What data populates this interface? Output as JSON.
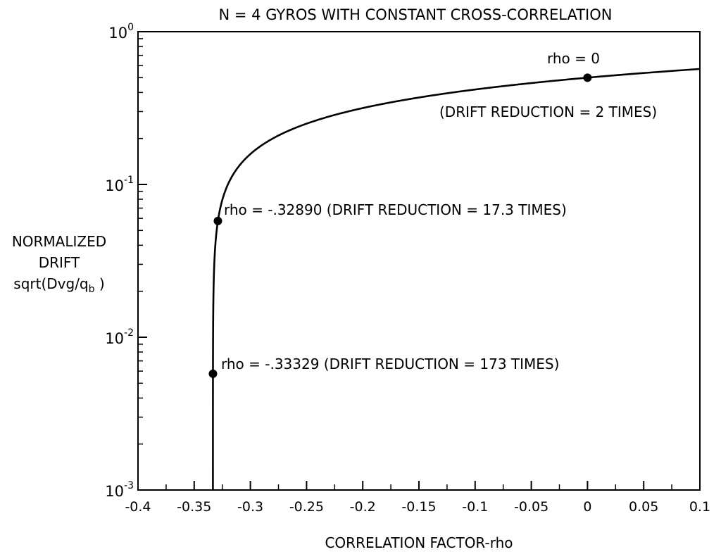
{
  "chart_data": {
    "type": "line",
    "title": "N = 4 GYROS WITH CONSTANT CROSS-CORRELATION",
    "xlabel": "CORRELATION FACTOR-rho",
    "ylabel": {
      "line1": "NORMALIZED",
      "line2": "DRIFT",
      "line3_main": "sqrt(Dvg/q",
      "line3_sub": "b",
      "line3_end": " )"
    },
    "xlim": [
      -0.4,
      0.1
    ],
    "ylim": [
      0.001,
      1
    ],
    "yscale": "log",
    "grid": false,
    "x_ticks": [
      "-0.4",
      "-0.35",
      "-0.3",
      "-0.25",
      "-0.2",
      "-0.15",
      "-0.1",
      "-0.05",
      "0",
      "0.05",
      "0.1"
    ],
    "y_ticks": [
      {
        "base": "10",
        "exp": "0"
      },
      {
        "base": "10",
        "exp": "-1"
      },
      {
        "base": "10",
        "exp": "-2"
      },
      {
        "base": "10",
        "exp": "-3"
      }
    ],
    "curve": {
      "n": 4,
      "formula": "sqrt((1 + 3*rho)/4)"
    },
    "points": [
      {
        "x": 0,
        "y": 0.5
      },
      {
        "x": -0.3289,
        "y": 0.0577
      },
      {
        "x": -0.33329,
        "y": 0.00577
      }
    ],
    "annotations": [
      "rho = 0",
      "(DRIFT REDUCTION = 2 TIMES)",
      "rho = -.32890 (DRIFT REDUCTION = 17.3 TIMES)",
      "rho = -.33329 (DRIFT REDUCTION = 173 TIMES)"
    ]
  }
}
